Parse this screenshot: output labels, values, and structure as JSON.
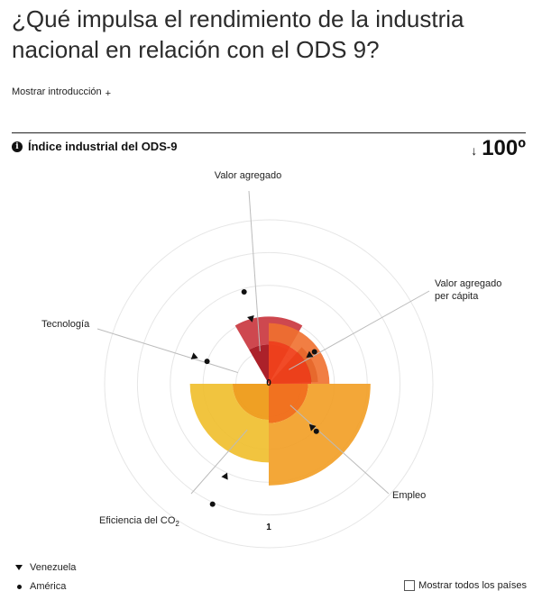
{
  "page": {
    "title": "¿Qué impulsa el rendimiento de la industria nacional en relación con el ODS 9?",
    "intro_toggle": "Mostrar introducción",
    "intro_toggle_icon": "+"
  },
  "chart_header": {
    "info_icon": "i",
    "title": "Índice industrial del ODS-9",
    "rank_arrow": "↓",
    "rank": "100º"
  },
  "legend": {
    "venezuela": "Venezuela",
    "america": "América",
    "show_all_label": "Mostrar todos los países"
  },
  "chart_data": {
    "type": "polar-bar",
    "center_label": "0",
    "radius_label": "1",
    "r_range": [
      0,
      1
    ],
    "rings": [
      0.2,
      0.4,
      0.6,
      0.8,
      1.0
    ],
    "categories": [
      {
        "key": "valor_agregado",
        "label": "Valor agregado",
        "label_lines": [
          "Valor agregado"
        ],
        "color": "#a8151f",
        "outer_color": "#c9343c",
        "venezuela": 0.41,
        "america": 0.58,
        "inner": 0.24
      },
      {
        "key": "valor_agregado_per_capita",
        "label": "Valor agregado per cápita",
        "label_lines": [
          "Valor agregado",
          "per cápita"
        ],
        "color": "#8e2418",
        "outer_color": "#8e2418",
        "venezuela": 0.3,
        "america": 0.34,
        "inner": 0.3
      },
      {
        "key": "empleo",
        "label": "Empleo",
        "label_lines": [
          "Empleo"
        ],
        "color": "#f0411b",
        "outer_color": "#f0702f",
        "venezuela": 0.37,
        "america": 0.41,
        "inner": 0.26
      },
      {
        "key": "eficiencia_co2",
        "label": "Eficiencia del CO2",
        "label_lines": [
          "Eficiencia del CO",
          "2"
        ],
        "color": "#f06a14",
        "outer_color": "#f29d22",
        "venezuela": 0.62,
        "america": 0.81,
        "inner": 0.24
      },
      {
        "key": "tecnologia",
        "label": "Tecnología",
        "label_lines": [
          "Tecnología"
        ],
        "color": "#ee9b18",
        "outer_color": "#efbe2a",
        "venezuela": 0.48,
        "america": 0.4,
        "inner": 0.22
      }
    ]
  }
}
